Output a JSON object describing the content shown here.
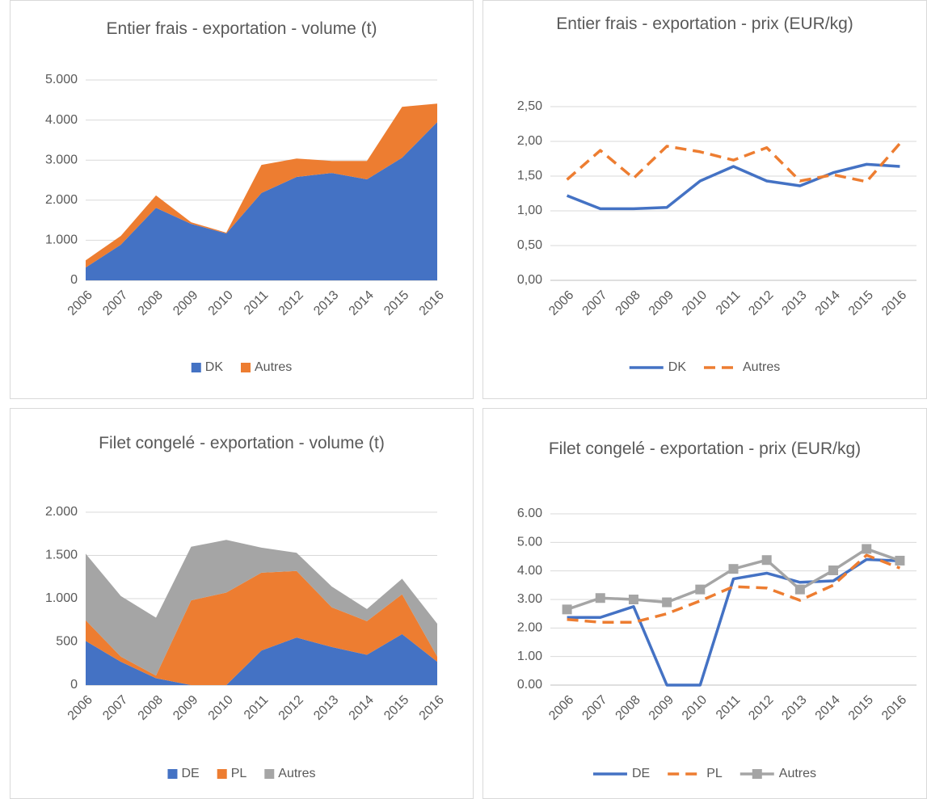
{
  "chart_data": [
    {
      "type": "area",
      "title": "Entier frais - exportation - volume (t)",
      "categories": [
        "2006",
        "2007",
        "2008",
        "2009",
        "2010",
        "2011",
        "2012",
        "2013",
        "2014",
        "2015",
        "2016"
      ],
      "series": [
        {
          "name": "DK",
          "color": "#4472c4",
          "values": [
            320,
            890,
            1810,
            1410,
            1170,
            2180,
            2580,
            2680,
            2520,
            3060,
            3950
          ]
        },
        {
          "name": "Autres",
          "color": "#ed7d31",
          "values": [
            180,
            220,
            310,
            40,
            20,
            700,
            460,
            300,
            460,
            1270,
            460
          ]
        }
      ],
      "ylim": [
        0,
        5000
      ],
      "yticks": [
        0,
        {
          "value": 1000,
          "label": "1.000"
        },
        {
          "value": 2000,
          "label": "2.000"
        },
        {
          "value": 3000,
          "label": "3.000"
        },
        {
          "value": 4000,
          "label": "4.000"
        },
        {
          "value": 5000,
          "label": "5.000"
        }
      ],
      "grid": true
    },
    {
      "type": "line",
      "title": "Entier frais - exportation - prix (EUR/kg)",
      "categories": [
        "2006",
        "2007",
        "2008",
        "2009",
        "2010",
        "2011",
        "2012",
        "2013",
        "2014",
        "2015",
        "2016"
      ],
      "series": [
        {
          "name": "DK",
          "color": "#4472c4",
          "dashed": false,
          "values": [
            1.22,
            1.03,
            1.03,
            1.05,
            1.43,
            1.64,
            1.43,
            1.36,
            1.55,
            1.67,
            1.64
          ]
        },
        {
          "name": "Autres",
          "color": "#ed7d31",
          "dashed": true,
          "values": [
            1.45,
            1.87,
            1.47,
            1.93,
            1.85,
            1.73,
            1.91,
            1.43,
            1.52,
            1.42,
            1.97
          ]
        }
      ],
      "ylim": [
        0,
        2.5
      ],
      "yticks": [
        {
          "value": 0,
          "label": "0,00"
        },
        {
          "value": 0.5,
          "label": "0,50"
        },
        {
          "value": 1,
          "label": "1,00"
        },
        {
          "value": 1.5,
          "label": "1,50"
        },
        {
          "value": 2,
          "label": "2,00"
        },
        {
          "value": 2.5,
          "label": "2,50"
        }
      ],
      "grid": true
    },
    {
      "type": "area",
      "title": "Filet congelé - exportation - volume (t)",
      "categories": [
        "2006",
        "2007",
        "2008",
        "2009",
        "2010",
        "2011",
        "2012",
        "2013",
        "2014",
        "2015",
        "2016"
      ],
      "series": [
        {
          "name": "DE",
          "color": "#4472c4",
          "values": [
            510,
            270,
            80,
            0,
            0,
            400,
            550,
            440,
            350,
            590,
            270
          ]
        },
        {
          "name": "PL",
          "color": "#ed7d31",
          "values": [
            240,
            60,
            30,
            980,
            1070,
            900,
            770,
            460,
            390,
            460,
            60
          ]
        },
        {
          "name": "Autres",
          "color": "#a5a5a5",
          "values": [
            770,
            700,
            670,
            620,
            610,
            290,
            210,
            240,
            140,
            180,
            380
          ]
        }
      ],
      "ylim": [
        0,
        2000
      ],
      "yticks": [
        0,
        500,
        {
          "value": 1000,
          "label": "1.000"
        },
        {
          "value": 1500,
          "label": "1.500"
        },
        {
          "value": 2000,
          "label": "2.000"
        }
      ],
      "grid": true
    },
    {
      "type": "line",
      "title": "Filet congelé - exportation - prix (EUR/kg)",
      "categories": [
        "2006",
        "2007",
        "2008",
        "2009",
        "2010",
        "2011",
        "2012",
        "2013",
        "2014",
        "2015",
        "2016"
      ],
      "series": [
        {
          "name": "DE",
          "color": "#4472c4",
          "dashed": false,
          "values": [
            2.37,
            2.37,
            2.75,
            0,
            0,
            3.72,
            3.92,
            3.6,
            3.65,
            4.4,
            4.35
          ]
        },
        {
          "name": "PL",
          "color": "#ed7d31",
          "dashed": true,
          "values": [
            2.3,
            2.2,
            2.2,
            2.5,
            2.95,
            3.45,
            3.4,
            2.97,
            3.5,
            4.55,
            4.1
          ]
        },
        {
          "name": "Autres",
          "color": "#a5a5a5",
          "dashed": false,
          "marker": "square",
          "values": [
            2.65,
            3.05,
            3.0,
            2.9,
            3.35,
            4.07,
            4.38,
            3.35,
            4.02,
            4.77,
            4.36
          ]
        }
      ],
      "ylim": [
        0,
        6
      ],
      "yticks": [
        {
          "value": 0,
          "label": "0.00"
        },
        {
          "value": 1,
          "label": "1.00"
        },
        {
          "value": 2,
          "label": "2.00"
        },
        {
          "value": 3,
          "label": "3.00"
        },
        {
          "value": 4,
          "label": "4.00"
        },
        {
          "value": 5,
          "label": "5.00"
        },
        {
          "value": 6,
          "label": "6.00"
        }
      ],
      "grid": true
    }
  ]
}
